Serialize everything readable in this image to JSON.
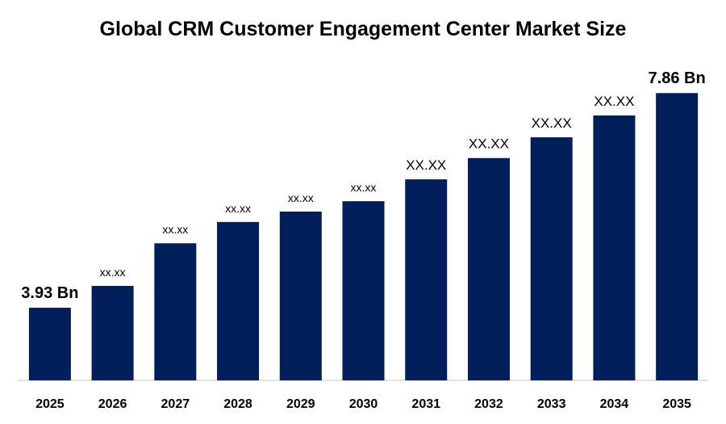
{
  "chart_data": {
    "type": "bar",
    "title": "Global CRM Customer Engagement Center Market Size",
    "categories": [
      "2025",
      "2026",
      "2027",
      "2028",
      "2029",
      "2030",
      "2031",
      "2032",
      "2033",
      "2034",
      "2035"
    ],
    "values": [
      3.93,
      4.33,
      5.11,
      5.5,
      5.69,
      5.88,
      6.28,
      6.67,
      7.05,
      7.45,
      7.86
    ],
    "value_labels": [
      "3.93 Bn",
      "xx.xx",
      "xx.xx",
      "xx.xx",
      "xx.xx",
      "xx.xx",
      "XX.XX",
      "XX.XX",
      "XX.XX",
      "XX.XX",
      "7.86 Bn"
    ],
    "color": "#021f5c",
    "ylim": [
      2.6,
      8.1
    ]
  }
}
